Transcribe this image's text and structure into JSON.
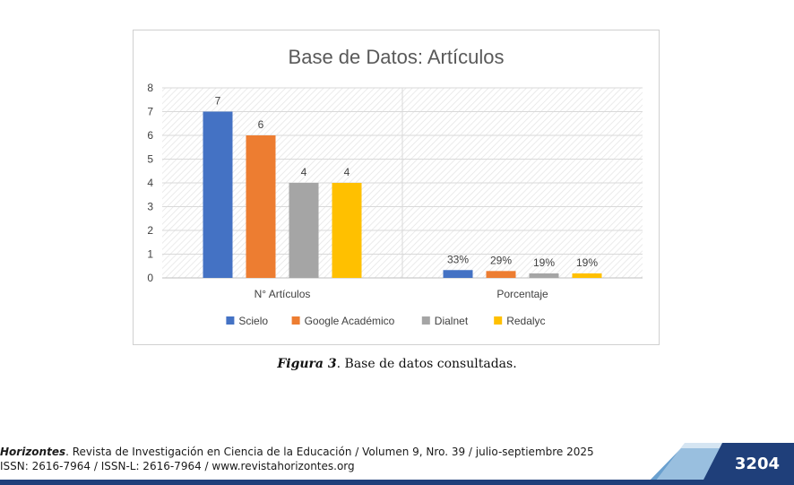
{
  "chart_data": {
    "type": "bar",
    "title": "Base de Datos: Artículos",
    "categories": [
      "N° Artículos",
      "Porcentaje"
    ],
    "series": [
      {
        "name": "Scielo",
        "color": "#4472c4",
        "values": [
          7,
          0.33
        ],
        "labels": [
          "7",
          "33%"
        ]
      },
      {
        "name": "Google Académico",
        "color": "#ed7d31",
        "values": [
          6,
          0.29
        ],
        "labels": [
          "6",
          "29%"
        ]
      },
      {
        "name": "Dialnet",
        "color": "#a5a5a5",
        "values": [
          4,
          0.19
        ],
        "labels": [
          "4",
          "19%"
        ]
      },
      {
        "name": "Redalyc",
        "color": "#ffc000",
        "values": [
          4,
          0.19
        ],
        "labels": [
          "4",
          "19%"
        ]
      }
    ],
    "ylim": [
      0,
      8
    ],
    "yticks": [
      "0",
      "1",
      "2",
      "3",
      "4",
      "5",
      "6",
      "7",
      "8"
    ],
    "grid": true,
    "legend_position": "bottom"
  },
  "caption": {
    "figure_label": "Figura 3",
    "text": ". Base de datos consultadas."
  },
  "footer": {
    "journal": "Horizontes",
    "line1_rest": ". Revista de Investigación en Ciencia de la Educación /  Volumen 9, Nro. 39 / julio-septiembre 2025",
    "line2": "ISSN: 2616-7964 / ISSN-L: 2616-7964 / www.revistahorizontes.org",
    "page_number": "3204"
  }
}
